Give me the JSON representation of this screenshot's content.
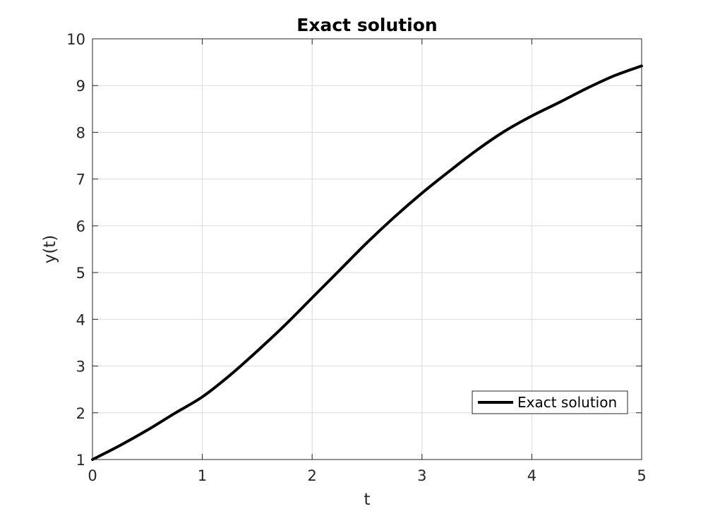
{
  "chart_data": {
    "type": "line",
    "title": "Exact solution",
    "xlabel": "t",
    "ylabel": "y(t)",
    "xlim": [
      0,
      5
    ],
    "ylim": [
      1,
      10
    ],
    "xticks": [
      0,
      1,
      2,
      3,
      4,
      5
    ],
    "yticks": [
      1,
      2,
      3,
      4,
      5,
      6,
      7,
      8,
      9,
      10
    ],
    "xtick_labels": [
      "0",
      "1",
      "2",
      "3",
      "4",
      "5"
    ],
    "ytick_labels": [
      "1",
      "2",
      "3",
      "4",
      "5",
      "6",
      "7",
      "8",
      "9",
      "10"
    ],
    "grid": true,
    "legend": {
      "position": "bottom-right",
      "entries": [
        "Exact solution"
      ]
    },
    "series": [
      {
        "name": "Exact solution",
        "color": "#000000",
        "x": [
          0,
          0.25,
          0.5,
          0.75,
          1,
          1.25,
          1.5,
          1.75,
          2,
          2.25,
          2.5,
          2.75,
          3,
          3.25,
          3.5,
          3.75,
          4,
          4.25,
          4.5,
          4.75,
          5
        ],
        "y": [
          1.0,
          1.3,
          1.63,
          1.99,
          2.34,
          2.8,
          3.32,
          3.87,
          4.46,
          5.05,
          5.64,
          6.19,
          6.7,
          7.17,
          7.62,
          8.02,
          8.35,
          8.64,
          8.94,
          9.21,
          9.42
        ]
      }
    ]
  }
}
